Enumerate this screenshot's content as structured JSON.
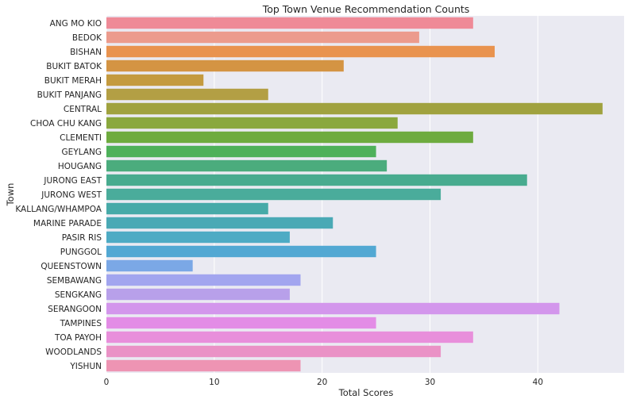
{
  "chart_data": {
    "type": "bar",
    "orientation": "horizontal",
    "title": "Top Town Venue Recommendation Counts",
    "xlabel": "Total Scores",
    "ylabel": "Town",
    "xlim": [
      0,
      48
    ],
    "xticks": [
      0,
      10,
      20,
      30,
      40
    ],
    "grid": true,
    "background": "#eaeaf2",
    "categories": [
      "ANG MO KIO",
      "BEDOK",
      "BISHAN",
      "BUKIT BATOK",
      "BUKIT MERAH",
      "BUKIT PANJANG",
      "CENTRAL",
      "CHOA CHU KANG",
      "CLEMENTI",
      "GEYLANG",
      "HOUGANG",
      "JURONG EAST",
      "JURONG WEST",
      "KALLANG/WHAMPOA",
      "MARINE PARADE",
      "PASIR RIS",
      "PUNGGOL",
      "QUEENSTOWN",
      "SEMBAWANG",
      "SENGKANG",
      "SERANGOON",
      "TAMPINES",
      "TOA PAYOH",
      "WOODLANDS",
      "YISHUN"
    ],
    "values": [
      34,
      29,
      36,
      22,
      9,
      15,
      46,
      27,
      34,
      25,
      26,
      39,
      31,
      15,
      21,
      17,
      25,
      8,
      18,
      17,
      42,
      25,
      34,
      31,
      18
    ],
    "colors": [
      "#ef8a97",
      "#ec9b8d",
      "#e9934f",
      "#d49443",
      "#c49a3f",
      "#b39f44",
      "#a0a23f",
      "#8aa83d",
      "#6eab3f",
      "#4eb15a",
      "#4bac7d",
      "#48ab8f",
      "#4aac9b",
      "#47aaa8",
      "#4aa9b5",
      "#4eabc4",
      "#52a8d3",
      "#7ba8e6",
      "#a2a5ef",
      "#b8a0ea",
      "#d396ec",
      "#e38ce6",
      "#e88fdb",
      "#ea92c6",
      "#ee94b3"
    ]
  }
}
